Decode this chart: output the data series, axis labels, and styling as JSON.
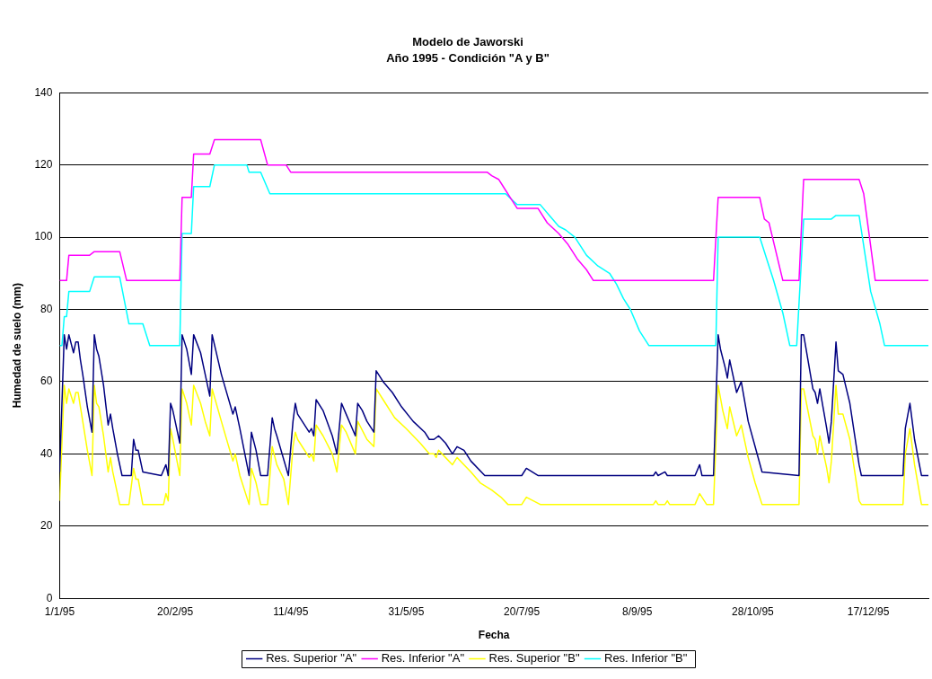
{
  "chart_data": {
    "type": "line",
    "title": "Modelo de Jaworski",
    "subtitle": "Año 1995 - Condición \"A y B\"",
    "xlabel": "Fecha",
    "ylabel": "Humedad de suelo (mm)",
    "xlim": [
      "1995-01-01",
      "1996-01-12"
    ],
    "xticks": [
      {
        "value": "1995-01-01",
        "label": "1/1/95"
      },
      {
        "value": "1995-02-20",
        "label": "20/2/95"
      },
      {
        "value": "1995-04-11",
        "label": "11/4/95"
      },
      {
        "value": "1995-05-31",
        "label": "31/5/95"
      },
      {
        "value": "1995-07-20",
        "label": "20/7/95"
      },
      {
        "value": "1995-09-08",
        "label": "8/9/95"
      },
      {
        "value": "1995-10-28",
        "label": "28/10/95"
      },
      {
        "value": "1995-12-17",
        "label": "17/12/95"
      }
    ],
    "ylim": [
      0,
      140
    ],
    "yticks": [
      0,
      20,
      40,
      60,
      80,
      100,
      120,
      140
    ],
    "grid": "y",
    "legend": "bottom",
    "marker": "none",
    "line_style": "solid",
    "series": [
      {
        "name": "Res. Superior \"A\"",
        "color": "#000080",
        "x": [
          "1995-01-01",
          "1995-01-03",
          "1995-01-04",
          "1995-01-05",
          "1995-01-07",
          "1995-01-08",
          "1995-01-09",
          "1995-01-10",
          "1995-01-11",
          "1995-01-13",
          "1995-01-15",
          "1995-01-16",
          "1995-01-17",
          "1995-01-18",
          "1995-01-20",
          "1995-01-22",
          "1995-01-23",
          "1995-01-24",
          "1995-01-26",
          "1995-01-28",
          "1995-02-01",
          "1995-02-02",
          "1995-02-03",
          "1995-02-04",
          "1995-02-06",
          "1995-02-14",
          "1995-02-16",
          "1995-02-17",
          "1995-02-18",
          "1995-02-19",
          "1995-02-22",
          "1995-02-23",
          "1995-02-25",
          "1995-02-27",
          "1995-02-28",
          "1995-03-03",
          "1995-03-05",
          "1995-03-07",
          "1995-03-08",
          "1995-03-12",
          "1995-03-17",
          "1995-03-18",
          "1995-03-20",
          "1995-03-24",
          "1995-03-25",
          "1995-03-27",
          "1995-03-29",
          "1995-04-01",
          "1995-04-03",
          "1995-04-04",
          "1995-04-05",
          "1995-04-10",
          "1995-04-12",
          "1995-04-13",
          "1995-04-14",
          "1995-04-19",
          "1995-04-20",
          "1995-04-21",
          "1995-04-22",
          "1995-04-25",
          "1995-04-29",
          "1995-05-01",
          "1995-05-03",
          "1995-05-05",
          "1995-05-09",
          "1995-05-10",
          "1995-05-12",
          "1995-05-14",
          "1995-05-17",
          "1995-05-18",
          "1995-05-21",
          "1995-05-25",
          "1995-05-29",
          "1995-06-03",
          "1995-06-08",
          "1995-06-10",
          "1995-06-12",
          "1995-06-14",
          "1995-06-17",
          "1995-06-20",
          "1995-06-22",
          "1995-06-25",
          "1995-06-28",
          "1995-07-04",
          "1995-07-18",
          "1995-07-20",
          "1995-07-22",
          "1995-07-27",
          "1995-09-15",
          "1995-09-16",
          "1995-09-17",
          "1995-09-20",
          "1995-09-21",
          "1995-10-03",
          "1995-10-05",
          "1995-10-06",
          "1995-10-11",
          "1995-10-13",
          "1995-10-14",
          "1995-10-16",
          "1995-10-17",
          "1995-10-18",
          "1995-10-21",
          "1995-10-23",
          "1995-10-26",
          "1995-10-29",
          "1995-11-01",
          "1995-11-17",
          "1995-11-18",
          "1995-11-19",
          "1995-11-23",
          "1995-11-24",
          "1995-11-25",
          "1995-11-26",
          "1995-11-29",
          "1995-11-30",
          "1995-12-01",
          "1995-12-03",
          "1995-12-04",
          "1995-12-06",
          "1995-12-09",
          "1995-12-13",
          "1995-12-14",
          "1996-01-01",
          "1996-01-02",
          "1996-01-04",
          "1996-01-06",
          "1996-01-09",
          "1996-01-12"
        ],
        "values": [
          35,
          73,
          69,
          73,
          68,
          71,
          71,
          66,
          62,
          53,
          46,
          73,
          69,
          67,
          59,
          48,
          51,
          47,
          40,
          34,
          34,
          44,
          41,
          41,
          35,
          34,
          37,
          34,
          54,
          52,
          43,
          73,
          69,
          62,
          73,
          68,
          62,
          56,
          73,
          62,
          51,
          53,
          47,
          34,
          46,
          41,
          34,
          34,
          50,
          47,
          45,
          34,
          49,
          54,
          51,
          46,
          47,
          45,
          55,
          52,
          45,
          40,
          54,
          51,
          45,
          54,
          52,
          49,
          46,
          63,
          60,
          57,
          53,
          49,
          46,
          44,
          44,
          45,
          43,
          40,
          42,
          41,
          38,
          34,
          34,
          34,
          36,
          34,
          34,
          35,
          34,
          35,
          34,
          34,
          37,
          34,
          34,
          73,
          69,
          64,
          61,
          66,
          57,
          60,
          49,
          42,
          35,
          34,
          73,
          73,
          58,
          57,
          54,
          58,
          47,
          43,
          49,
          71,
          63,
          62,
          54,
          37,
          34,
          34,
          47,
          54,
          44,
          34,
          34
        ]
      },
      {
        "name": "Res. Inferior \"A\"",
        "color": "#ff00ff",
        "x": [
          "1995-01-01",
          "1995-01-04",
          "1995-01-05",
          "1995-01-14",
          "1995-01-16",
          "1995-01-27",
          "1995-01-30",
          "1995-02-22",
          "1995-02-23",
          "1995-02-27",
          "1995-02-28",
          "1995-03-07",
          "1995-03-09",
          "1995-03-29",
          "1995-04-01",
          "1995-04-09",
          "1995-04-11",
          "1995-07-05",
          "1995-07-07",
          "1995-07-10",
          "1995-07-12",
          "1995-07-15",
          "1995-07-18",
          "1995-07-27",
          "1995-07-31",
          "1995-08-05",
          "1995-08-09",
          "1995-08-13",
          "1995-08-17",
          "1995-08-20",
          "1995-10-11",
          "1995-10-13",
          "1995-10-31",
          "1995-11-02",
          "1995-11-04",
          "1995-11-10",
          "1995-11-17",
          "1995-11-19",
          "1995-12-13",
          "1995-12-15",
          "1995-12-20",
          "1996-01-12"
        ],
        "values": [
          88,
          88,
          95,
          95,
          96,
          96,
          88,
          88,
          111,
          111,
          123,
          123,
          127,
          127,
          120,
          120,
          118,
          118,
          117,
          116,
          114,
          111,
          108,
          108,
          104,
          101,
          98,
          94,
          91,
          88,
          88,
          111,
          111,
          105,
          104,
          88,
          88,
          116,
          116,
          112,
          88,
          88
        ]
      },
      {
        "name": "Res. Superior \"B\"",
        "color": "#ffff00",
        "x": [
          "1995-01-01",
          "1995-01-03",
          "1995-01-04",
          "1995-01-05",
          "1995-01-07",
          "1995-01-08",
          "1995-01-09",
          "1995-01-10",
          "1995-01-11",
          "1995-01-13",
          "1995-01-15",
          "1995-01-16",
          "1995-01-17",
          "1995-01-18",
          "1995-01-20",
          "1995-01-22",
          "1995-01-23",
          "1995-01-24",
          "1995-01-27",
          "1995-01-31",
          "1995-02-02",
          "1995-02-03",
          "1995-02-04",
          "1995-02-06",
          "1995-02-15",
          "1995-02-16",
          "1995-02-17",
          "1995-02-18",
          "1995-02-19",
          "1995-02-22",
          "1995-02-23",
          "1995-02-25",
          "1995-02-27",
          "1995-02-28",
          "1995-03-03",
          "1995-03-05",
          "1995-03-07",
          "1995-03-08",
          "1995-03-12",
          "1995-03-17",
          "1995-03-18",
          "1995-03-20",
          "1995-03-24",
          "1995-03-25",
          "1995-03-27",
          "1995-03-29",
          "1995-04-01",
          "1995-04-03",
          "1995-04-05",
          "1995-04-08",
          "1995-04-10",
          "1995-04-12",
          "1995-04-13",
          "1995-04-14",
          "1995-04-19",
          "1995-04-20",
          "1995-04-21",
          "1995-04-22",
          "1995-04-25",
          "1995-04-29",
          "1995-05-01",
          "1995-05-03",
          "1995-05-05",
          "1995-05-09",
          "1995-05-10",
          "1995-05-14",
          "1995-05-17",
          "1995-05-18",
          "1995-05-21",
          "1995-05-26",
          "1995-05-31",
          "1995-06-06",
          "1995-06-10",
          "1995-06-12",
          "1995-06-13",
          "1995-06-14",
          "1995-06-17",
          "1995-06-20",
          "1995-06-22",
          "1995-06-25",
          "1995-06-28",
          "1995-07-02",
          "1995-07-07",
          "1995-07-11",
          "1995-07-14",
          "1995-07-18",
          "1995-07-20",
          "1995-07-22",
          "1995-07-25",
          "1995-07-28",
          "1995-09-15",
          "1995-09-16",
          "1995-09-17",
          "1995-09-20",
          "1995-09-21",
          "1995-09-22",
          "1995-10-03",
          "1995-10-05",
          "1995-10-08",
          "1995-10-11",
          "1995-10-13",
          "1995-10-15",
          "1995-10-17",
          "1995-10-18",
          "1995-10-21",
          "1995-10-23",
          "1995-10-26",
          "1995-10-29",
          "1995-11-01",
          "1995-11-17",
          "1995-11-18",
          "1995-11-19",
          "1995-11-23",
          "1995-11-24",
          "1995-11-25",
          "1995-11-26",
          "1995-11-29",
          "1995-11-30",
          "1995-12-01",
          "1995-12-03",
          "1995-12-04",
          "1995-12-06",
          "1995-12-09",
          "1995-12-13",
          "1995-12-14",
          "1996-01-01",
          "1996-01-02",
          "1996-01-04",
          "1996-01-06",
          "1996-01-09",
          "1996-01-12"
        ],
        "values": [
          27,
          59,
          54,
          58,
          54,
          57,
          57,
          53,
          49,
          41,
          34,
          59,
          54,
          53,
          45,
          35,
          39,
          35,
          26,
          26,
          36,
          33,
          33,
          26,
          26,
          29,
          27,
          47,
          44,
          34,
          58,
          54,
          48,
          59,
          54,
          49,
          45,
          58,
          49,
          38,
          40,
          34,
          26,
          36,
          32,
          26,
          26,
          42,
          37,
          33,
          26,
          42,
          46,
          44,
          39,
          40,
          38,
          48,
          45,
          40,
          35,
          48,
          46,
          40,
          49,
          44,
          42,
          58,
          55,
          50,
          47,
          43,
          40,
          40,
          39,
          41,
          39,
          37,
          39,
          37,
          35,
          32,
          30,
          28,
          26,
          26,
          26,
          28,
          27,
          26,
          26,
          27,
          26,
          26,
          27,
          26,
          26,
          29,
          26,
          26,
          59,
          52,
          47,
          53,
          45,
          48,
          39,
          32,
          26,
          26,
          58,
          58,
          45,
          44,
          40,
          45,
          36,
          32,
          38,
          59,
          51,
          51,
          44,
          27,
          26,
          26,
          40,
          47,
          37,
          26,
          26
        ]
      },
      {
        "name": "Res. Inferior \"B\"",
        "color": "#00ffff",
        "x": [
          "1995-01-01",
          "1995-01-02",
          "1995-01-03",
          "1995-01-04",
          "1995-01-05",
          "1995-01-14",
          "1995-01-16",
          "1995-01-27",
          "1995-01-31",
          "1995-02-06",
          "1995-02-09",
          "1995-02-22",
          "1995-02-23",
          "1995-02-27",
          "1995-02-28",
          "1995-03-07",
          "1995-03-09",
          "1995-03-23",
          "1995-03-24",
          "1995-03-29",
          "1995-04-02",
          "1995-07-13",
          "1995-07-18",
          "1995-07-28",
          "1995-08-01",
          "1995-08-05",
          "1995-08-08",
          "1995-08-12",
          "1995-08-17",
          "1995-08-22",
          "1995-08-27",
          "1995-08-30",
          "1995-09-02",
          "1995-09-05",
          "1995-09-09",
          "1995-09-13",
          "1995-10-12",
          "1995-10-13",
          "1995-10-31",
          "1995-11-03",
          "1995-11-06",
          "1995-11-10",
          "1995-11-13",
          "1995-11-16",
          "1995-11-19",
          "1995-12-01",
          "1995-12-03",
          "1995-12-13",
          "1995-12-18",
          "1995-12-22",
          "1995-12-24",
          "1996-01-12"
        ],
        "values": [
          70,
          70,
          78,
          78,
          85,
          85,
          89,
          89,
          76,
          76,
          70,
          70,
          101,
          101,
          114,
          114,
          120,
          120,
          118,
          118,
          112,
          112,
          109,
          109,
          106,
          103,
          102,
          100,
          95,
          92,
          90,
          87,
          83,
          80,
          74,
          70,
          70,
          100,
          100,
          94,
          88,
          79,
          70,
          70,
          105,
          105,
          106,
          106,
          85,
          76,
          70,
          70
        ]
      }
    ]
  }
}
